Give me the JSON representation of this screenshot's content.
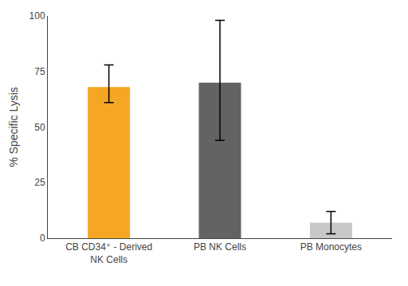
{
  "chart_data": {
    "type": "bar",
    "categories": [
      "CB CD34⁺ - Derived\nNK Cells",
      "PB NK Cells",
      "PB Monocytes"
    ],
    "values": [
      68,
      70,
      7
    ],
    "errors_upper": [
      10,
      28,
      5
    ],
    "errors_lower": [
      7,
      26,
      5
    ],
    "colors": [
      "#F5A623",
      "#636363",
      "#C8C8C8"
    ],
    "ylabel": "% Specific Lysis",
    "ylim": [
      0,
      100
    ],
    "yticks": [
      0,
      25,
      50,
      75,
      100
    ],
    "grid": false
  }
}
